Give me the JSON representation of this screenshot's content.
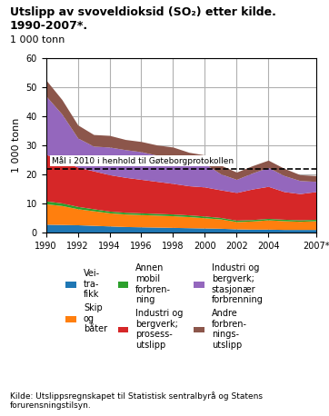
{
  "chart_data": {
    "type": "area",
    "stacked": true,
    "title": "Utslipp av svoveldioksid (SO₂) etter kilde. 1990-2007*.",
    "subtitle": "1 000 tonn",
    "y_label": "1 000 tonn",
    "source": "Kilde: Utslippsregnskapet til Statistisk sentralbyrå og Statens forurensningstilsyn.",
    "x": [
      1990,
      1991,
      1992,
      1993,
      1994,
      1995,
      1996,
      1997,
      1998,
      1999,
      2000,
      2001,
      2002,
      2003,
      2004,
      2005,
      2006,
      2007
    ],
    "series": [
      {
        "name": "Vei-\ntra-\nfikk",
        "values": [
          3.0,
          2.9,
          2.8,
          2.6,
          2.4,
          2.2,
          2.1,
          2.0,
          1.9,
          1.8,
          1.7,
          1.6,
          1.4,
          1.3,
          1.3,
          1.2,
          1.2,
          1.2
        ]
      },
      {
        "name": "Skip\nog\nbåter",
        "values": [
          7.0,
          6.5,
          5.5,
          5.0,
          4.5,
          4.3,
          4.2,
          4.1,
          4.0,
          3.8,
          3.5,
          3.2,
          2.5,
          2.8,
          3.2,
          3.0,
          2.8,
          3.0
        ]
      },
      {
        "name": "Annen\nmobil\nforbren-\nning",
        "values": [
          1.0,
          0.9,
          0.8,
          0.7,
          0.6,
          0.6,
          0.6,
          0.6,
          0.6,
          0.6,
          0.6,
          0.5,
          0.5,
          0.5,
          0.5,
          0.5,
          0.5,
          0.5
        ]
      },
      {
        "name": "Industri og\nbergverk;\nprosess-\nutslipp",
        "values": [
          16.0,
          14.5,
          13.5,
          13.0,
          12.5,
          12.0,
          11.5,
          11.0,
          10.5,
          10.0,
          10.0,
          9.5,
          9.5,
          10.5,
          11.0,
          9.5,
          9.0,
          9.5
        ]
      },
      {
        "name": "Industri og\nbergverk;\nstasjonær\nforbrenning",
        "values": [
          20.0,
          16.0,
          10.0,
          8.5,
          9.5,
          9.5,
          9.5,
          9.0,
          9.0,
          8.5,
          8.0,
          5.5,
          4.5,
          5.5,
          6.5,
          5.5,
          4.5,
          3.5
        ]
      },
      {
        "name": "Andre\nforbren-\nnings-\nutslipp",
        "values": [
          5.5,
          5.0,
          4.5,
          4.0,
          4.0,
          3.5,
          3.5,
          3.5,
          3.5,
          3.0,
          3.0,
          3.0,
          2.5,
          2.5,
          2.5,
          2.5,
          2.0,
          2.0
        ]
      }
    ],
    "annotations": [
      {
        "text": "Mål i 2010 i henhold til Gøteborgprotokollen",
        "y": 22.0,
        "line_style": "dashed"
      }
    ],
    "xlim": [
      1990,
      2007
    ],
    "xticks": [
      1990,
      1992,
      1994,
      1996,
      1998,
      2000,
      2002,
      2004,
      {
        "value": 2007,
        "label": "2007*"
      }
    ],
    "ylim": [
      0,
      60
    ],
    "yticks": [
      0,
      10,
      20,
      30,
      40,
      50,
      60
    ],
    "grid": true,
    "legend": "upper center"
  }
}
